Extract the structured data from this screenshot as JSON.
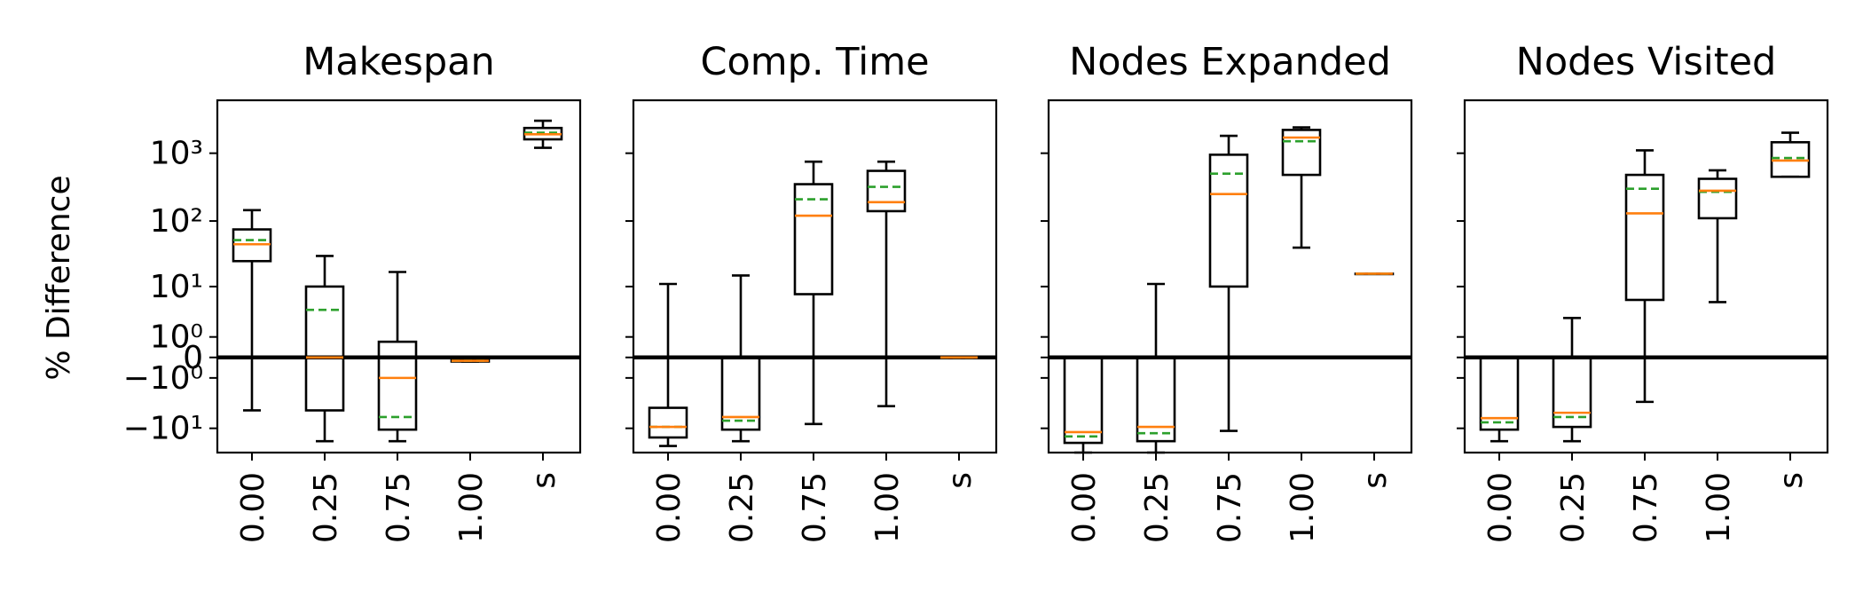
{
  "ylabel": "% Difference",
  "colors": {
    "median": "#ff7f0e",
    "mean": "#2ca02c",
    "box": "#000000"
  },
  "chart_data": {
    "type": "box",
    "yscale": "symlog",
    "ylim": [
      -24,
      6000
    ],
    "yticks": [
      -10,
      -1,
      0,
      1,
      10,
      100,
      1000
    ],
    "ytick_labels": [
      "−10¹",
      "−10⁰",
      "0",
      "10⁰",
      "10¹",
      "10²",
      "10³"
    ],
    "categories": [
      "0.00",
      "0.25",
      "0.75",
      "1.00",
      "s"
    ],
    "shared_y": true,
    "panels": [
      {
        "title": "Makespan",
        "boxes": [
          {
            "whislo": -5,
            "q1": 25,
            "med": 45,
            "mean": 52,
            "q3": 75,
            "whishi": 145
          },
          {
            "whislo": -16,
            "q1": -5,
            "med": 0,
            "mean": 4,
            "q3": 10,
            "whishi": 30
          },
          {
            "whislo": -16,
            "q1": -10.5,
            "med": -1,
            "mean": -6.5,
            "q3": 0.7,
            "whishi": 17
          },
          {
            "whislo": -0.15,
            "q1": -0.15,
            "med": -0.12,
            "mean": -0.12,
            "q3": -0.1,
            "whishi": -0.1
          },
          {
            "whislo": 1200,
            "q1": 1600,
            "med": 1900,
            "mean": 2000,
            "q3": 2350,
            "whishi": 3000
          }
        ]
      },
      {
        "title": "Comp. Time",
        "boxes": [
          {
            "whislo": -19,
            "q1": -14,
            "med": -9.5,
            "mean": -9.5,
            "q3": -4.5,
            "whishi": 11
          },
          {
            "whislo": -16,
            "q1": -10.5,
            "med": -6.5,
            "mean": -7.5,
            "q3": 0,
            "whishi": 15
          },
          {
            "whislo": -8.5,
            "q1": 7.5,
            "med": 120,
            "mean": 210,
            "q3": 350,
            "whishi": 750
          },
          {
            "whislo": -4.2,
            "q1": 140,
            "med": 190,
            "mean": 320,
            "q3": 550,
            "whishi": 750
          },
          {
            "whislo": 0,
            "q1": 0,
            "med": 0,
            "mean": 0,
            "q3": 0,
            "whishi": 0
          }
        ]
      },
      {
        "title": "Nodes Expanded",
        "boxes": [
          {
            "whislo": -24,
            "q1": -17,
            "med": -11.5,
            "mean": -13.5,
            "q3": 0,
            "whishi": 0
          },
          {
            "whislo": -24,
            "q1": -16,
            "med": -9.5,
            "mean": -12,
            "q3": 0,
            "whishi": 11
          },
          {
            "whislo": -11,
            "q1": 10,
            "med": 250,
            "mean": 500,
            "q3": 950,
            "whishi": 1800
          },
          {
            "whislo": 40,
            "q1": 480,
            "med": 1700,
            "mean": 1500,
            "q3": 2200,
            "whishi": 2400
          },
          {
            "whislo": 16,
            "q1": 16,
            "med": 16,
            "mean": 16,
            "q3": 16,
            "whishi": 16
          }
        ]
      },
      {
        "title": "Nodes Visited",
        "boxes": [
          {
            "whislo": -16,
            "q1": -10.5,
            "med": -6.8,
            "mean": -8,
            "q3": 0,
            "whishi": 0
          },
          {
            "whislo": -16,
            "q1": -9.5,
            "med": -5.5,
            "mean": -6.5,
            "q3": 0,
            "whishi": 2.8
          },
          {
            "whislo": -3.5,
            "q1": 6,
            "med": 130,
            "mean": 300,
            "q3": 480,
            "whishi": 1100
          },
          {
            "whislo": 5.5,
            "q1": 110,
            "med": 280,
            "mean": 270,
            "q3": 420,
            "whishi": 560
          },
          {
            "whislo": 450,
            "q1": 450,
            "med": 780,
            "mean": 850,
            "q3": 1450,
            "whishi": 2000
          }
        ]
      }
    ]
  }
}
